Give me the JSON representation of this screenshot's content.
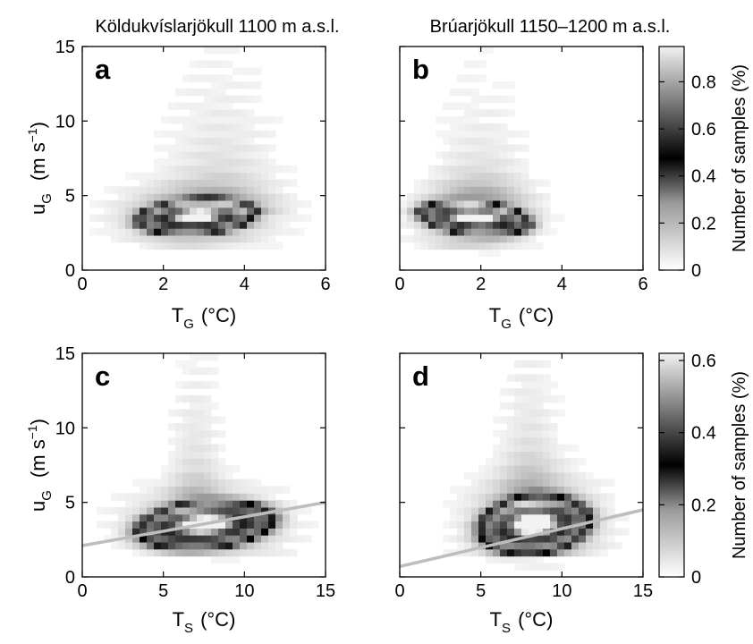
{
  "figure": {
    "col_titles": [
      "Köldukvíslarjökull 1100 m a.s.l.",
      "Brúarjökull 1150–1200 m a.s.l."
    ],
    "ylabel": {
      "main": "u",
      "sub": "G",
      "unit_open": "(m s",
      "unit_exp": "−1",
      "unit_close": ")"
    },
    "xlabel_top": {
      "main": "T",
      "sub": "G",
      "unit": "(°C)"
    },
    "xlabel_bottom": {
      "main": "T",
      "sub": "S",
      "unit": "(°C)"
    }
  },
  "chart_data": [
    {
      "panel": "a",
      "type": "heatmap",
      "title": "Köldukvíslarjökull 1100 m a.s.l.",
      "xlim": [
        0,
        6
      ],
      "ylim": [
        0,
        15
      ],
      "xticks": [
        "0",
        "2",
        "4",
        "6"
      ],
      "yticks": [
        "0",
        "5",
        "10",
        "15"
      ],
      "colorbar": {
        "label": "Number of samples (%)",
        "range": [
          0,
          0.95
        ],
        "ticks": [
          "0",
          "0.2",
          "0.4",
          "0.6",
          "0.8"
        ],
        "tick_values": [
          0,
          0.2,
          0.4,
          0.6,
          0.8
        ]
      },
      "density": {
        "cx": 2.8,
        "cy": 3.6,
        "ring_a": 1.25,
        "ring_b": 0.95,
        "angle_deg": 24,
        "halo_x": 1.6,
        "halo_y": 1.8,
        "upper_spread": 6.0,
        "upper_center": 3.4
      }
    },
    {
      "panel": "b",
      "type": "heatmap",
      "title": "Brúarjökull 1150–1200 m a.s.l.",
      "xlim": [
        0,
        6
      ],
      "ylim": [
        0,
        15
      ],
      "xticks": [
        "0",
        "2",
        "4",
        "6"
      ],
      "yticks": [
        "",
        "",
        "",
        ""
      ],
      "colorbar": {
        "label": "Number of samples (%)",
        "range": [
          0,
          0.95
        ],
        "ticks": [
          "0",
          "0.2",
          "0.4",
          "0.6",
          "0.8"
        ],
        "tick_values": [
          0,
          0.2,
          0.4,
          0.6,
          0.8
        ]
      },
      "density": {
        "cx": 1.85,
        "cy": 3.5,
        "ring_a": 0.85,
        "ring_b": 1.25,
        "angle_deg": 60,
        "halo_x": 1.2,
        "halo_y": 2.0,
        "upper_spread": 5.0,
        "upper_center": 2.0
      }
    },
    {
      "panel": "c",
      "type": "heatmap",
      "xlim": [
        0,
        15
      ],
      "ylim": [
        0,
        15
      ],
      "xticks": [
        "0",
        "5",
        "10",
        "15"
      ],
      "yticks": [
        "0",
        "5",
        "10",
        "15"
      ],
      "colorbar": {
        "label": "Number of samples (%)",
        "range": [
          0,
          0.62
        ],
        "ticks": [
          "0",
          "0.2",
          "0.4",
          "0.6"
        ],
        "tick_values": [
          0,
          0.2,
          0.4,
          0.6
        ]
      },
      "density": {
        "cx": 7.6,
        "cy": 3.5,
        "ring_a": 3.6,
        "ring_b": 1.3,
        "angle_deg": 6,
        "halo_x": 4.0,
        "halo_y": 2.2,
        "upper_spread": 7.0,
        "upper_center": 7.0
      },
      "fit_line": {
        "x": [
          0,
          15
        ],
        "y": [
          2.1,
          5.0
        ]
      }
    },
    {
      "panel": "d",
      "type": "heatmap",
      "xlim": [
        0,
        15
      ],
      "ylim": [
        0,
        15
      ],
      "xticks": [
        "0",
        "5",
        "10",
        "15"
      ],
      "yticks": [
        "",
        "",
        "",
        ""
      ],
      "colorbar": {
        "label": "Number of samples (%)",
        "range": [
          0,
          0.62
        ],
        "ticks": [
          "0",
          "0.2",
          "0.4",
          "0.6"
        ],
        "tick_values": [
          0,
          0.2,
          0.4,
          0.6
        ]
      },
      "density": {
        "cx": 8.3,
        "cy": 3.5,
        "ring_a": 2.9,
        "ring_b": 1.6,
        "angle_deg": 8,
        "halo_x": 3.5,
        "halo_y": 3.0,
        "upper_spread": 8.0,
        "upper_center": 8.0
      },
      "fit_line": {
        "x": [
          0,
          15
        ],
        "y": [
          0.7,
          4.5
        ]
      }
    }
  ]
}
